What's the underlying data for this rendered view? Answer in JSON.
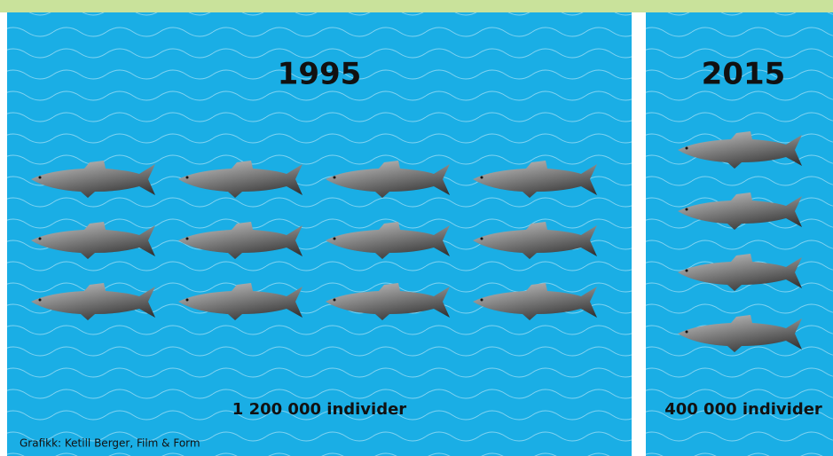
{
  "panels": [
    {
      "year": "1995",
      "fish": 12,
      "label": "1 200 000 individer"
    },
    {
      "year": "2015",
      "fish": 4,
      "label": "400 000 individer"
    }
  ],
  "credit": "Grafikk: Ketill Berger, Film & Form"
}
